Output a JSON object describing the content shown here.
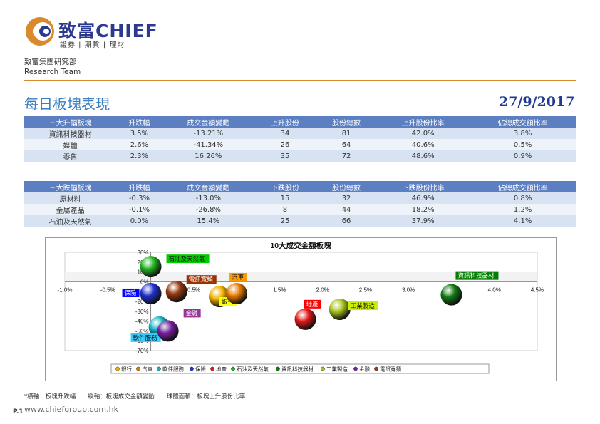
{
  "brand": {
    "name": "致富CHIEF",
    "sub": "證券 | 期貨 | 理財",
    "dept": "致富集團研究部",
    "team": "Research Team"
  },
  "title": "每日板塊表現",
  "date": "27/9/2017",
  "rising": {
    "headers": [
      "三大升幅板塊",
      "升跌幅",
      "成交金額變動",
      "上升股份",
      "股份總數",
      "上升股份比率",
      "佔總成交額比率"
    ],
    "rows": [
      [
        "資訊科技器材",
        "3.5%",
        "-13.21%",
        "34",
        "81",
        "42.0%",
        "3.8%"
      ],
      [
        "媒體",
        "2.6%",
        "-41.34%",
        "26",
        "64",
        "40.6%",
        "0.5%"
      ],
      [
        "零售",
        "2.3%",
        "16.26%",
        "35",
        "72",
        "48.6%",
        "0.9%"
      ]
    ]
  },
  "falling": {
    "headers": [
      "三大跌幅板塊",
      "升跌幅",
      "成交金額變動",
      "下跌股份",
      "股份總數",
      "下跌股份比率",
      "佔總成交額比率"
    ],
    "rows": [
      [
        "原材料",
        "-0.3%",
        "-13.0%",
        "15",
        "32",
        "46.9%",
        "0.8%"
      ],
      [
        "金屬產品",
        "-0.1%",
        "-26.8%",
        "8",
        "44",
        "18.2%",
        "1.2%"
      ],
      [
        "石油及天然氣",
        "0.0%",
        "15.4%",
        "25",
        "66",
        "37.9%",
        "4.1%"
      ]
    ]
  },
  "chart_data": {
    "type": "scatter",
    "title": "10大成交金額板塊",
    "xlim": [
      -1.0,
      4.5
    ],
    "ylim": [
      -70,
      30
    ],
    "x_ticks": [
      "-1.0%",
      "-0.5%",
      "0.0%",
      "0.5%",
      "1.0%",
      "1.5%",
      "2.0%",
      "2.5%",
      "3.0%",
      "3.5%",
      "4.0%",
      "4.5%"
    ],
    "y_ticks": [
      "30%",
      "20%",
      "10%",
      "0%",
      "-10%",
      "-20%",
      "-30%",
      "-40%",
      "-50%",
      "-60%",
      "-70%"
    ],
    "legend_position": "bottom",
    "series": [
      {
        "name": "銀行",
        "x": 0.8,
        "y": -15,
        "color": "#f0b100",
        "label_color": "#ffff00"
      },
      {
        "name": "汽車",
        "x": 1.0,
        "y": -12,
        "color": "#e87a00",
        "label_color": "#ff9900"
      },
      {
        "name": "軟件服務",
        "x": 0.1,
        "y": -46,
        "color": "#1bb5c9",
        "label_color": "#33ccff"
      },
      {
        "name": "保險",
        "x": 0.0,
        "y": -12,
        "color": "#1f2fd0",
        "label_color": "#0000ff"
      },
      {
        "name": "地產",
        "x": 1.8,
        "y": -38,
        "color": "#e01818",
        "label_color": "#ff0000"
      },
      {
        "name": "石油及天然氣",
        "x": 0.0,
        "y": 15.4,
        "color": "#22b522",
        "label_color": "#00cc00"
      },
      {
        "name": "資訊科技器材",
        "x": 3.5,
        "y": -13.21,
        "color": "#127a12",
        "label_color": "#008000"
      },
      {
        "name": "工業製造",
        "x": 2.2,
        "y": -28,
        "color": "#a8c21a",
        "label_color": "#ccee00"
      },
      {
        "name": "金融",
        "x": 0.2,
        "y": -50,
        "color": "#7a1fa2",
        "label_color": "#993399"
      },
      {
        "name": "電訊寬頻",
        "x": 0.3,
        "y": -10,
        "color": "#9a3a10",
        "label_color": "#993300"
      }
    ]
  },
  "footnote": "*橫軸：板塊升跌幅　　縱軸：板塊成交金額變動　　球體面積：板塊上升股份比率",
  "page": "P.1",
  "website": "www.chiefgroup.com.hk"
}
